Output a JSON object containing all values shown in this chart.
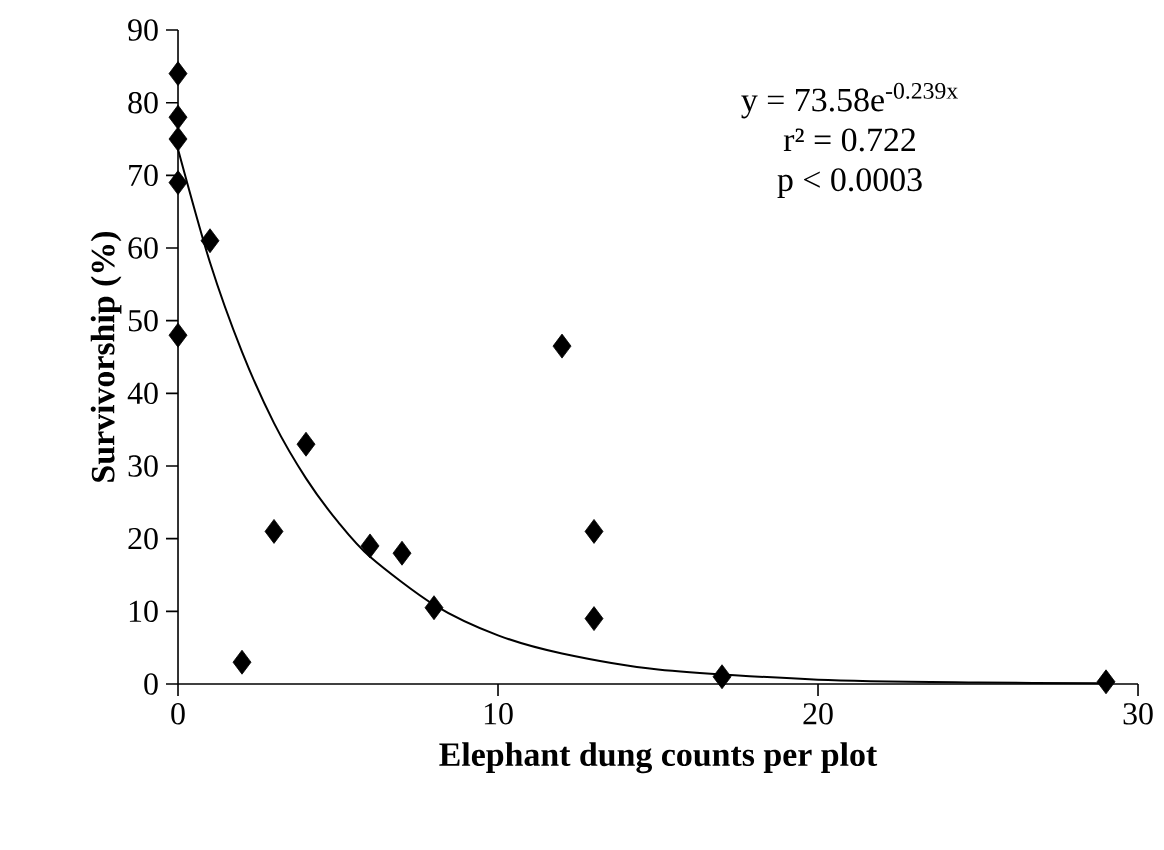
{
  "chart_data": {
    "type": "scatter",
    "xlabel": "Elephant dung counts per plot",
    "ylabel": "Survivorship (%)",
    "xlim": [
      0,
      30
    ],
    "ylim": [
      0,
      90
    ],
    "xticks": [
      0,
      10,
      20,
      30
    ],
    "yticks": [
      0,
      10,
      20,
      30,
      40,
      50,
      60,
      70,
      80,
      90
    ],
    "grid": false,
    "marker": "diamond",
    "series": [
      {
        "color": "#000000",
        "x": [
          0,
          0,
          0,
          0,
          0,
          1,
          2,
          3,
          4,
          6,
          7,
          8,
          12,
          13,
          13,
          17,
          29
        ],
        "values": [
          84,
          78,
          75,
          69,
          48,
          61,
          3,
          21,
          33,
          19,
          18,
          10.5,
          46.5,
          21,
          9,
          1,
          0.3
        ]
      },
      {
        "type": "line",
        "color": "#000000",
        "marker": "none",
        "x": [
          0,
          1,
          2,
          3,
          4,
          5,
          6,
          8,
          10,
          12,
          15,
          20,
          25,
          29
        ],
        "values": [
          73.6,
          58,
          45.7,
          35.9,
          28.3,
          22.3,
          17.5,
          10.9,
          6.7,
          4.2,
          2.0,
          0.6,
          0.2,
          0.1
        ]
      }
    ],
    "annotations": [
      "y = 73.58e$^{-0.239x}$",
      "r² = 0.722",
      "p < 0.0003"
    ]
  }
}
